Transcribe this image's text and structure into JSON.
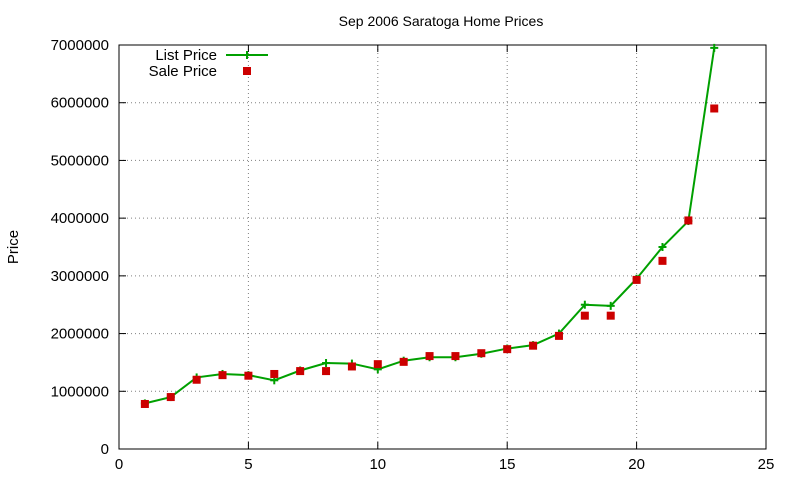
{
  "chart_data": {
    "type": "line",
    "title": "Sep 2006 Saratoga Home Prices",
    "xlabel": "",
    "ylabel": "Price",
    "xlim": [
      0,
      25
    ],
    "ylim": [
      0,
      7000000
    ],
    "xticks": [
      0,
      5,
      10,
      15,
      20,
      25
    ],
    "yticks": [
      0,
      1000000,
      2000000,
      3000000,
      4000000,
      5000000,
      6000000,
      7000000
    ],
    "grid": true,
    "legend_position": "top-left",
    "x": [
      1,
      2,
      3,
      4,
      5,
      6,
      7,
      8,
      9,
      10,
      11,
      12,
      13,
      14,
      15,
      16,
      17,
      18,
      19,
      20,
      21,
      22,
      23
    ],
    "series": [
      {
        "name": "List Price",
        "style": "linespoints",
        "marker": "plus",
        "color": "#00a000",
        "values": [
          790000,
          900000,
          1240000,
          1300000,
          1280000,
          1190000,
          1360000,
          1490000,
          1480000,
          1380000,
          1530000,
          1590000,
          1590000,
          1650000,
          1740000,
          1800000,
          2000000,
          2500000,
          2480000,
          2950000,
          3500000,
          3950000,
          6950000
        ]
      },
      {
        "name": "Sale Price",
        "style": "points",
        "marker": "square",
        "color": "#cc0000",
        "values": [
          780000,
          900000,
          1200000,
          1280000,
          1270000,
          1300000,
          1350000,
          1350000,
          1430000,
          1470000,
          1510000,
          1610000,
          1610000,
          1660000,
          1730000,
          1790000,
          1960000,
          2310000,
          2310000,
          2930000,
          3260000,
          3960000,
          5900000
        ]
      }
    ]
  }
}
